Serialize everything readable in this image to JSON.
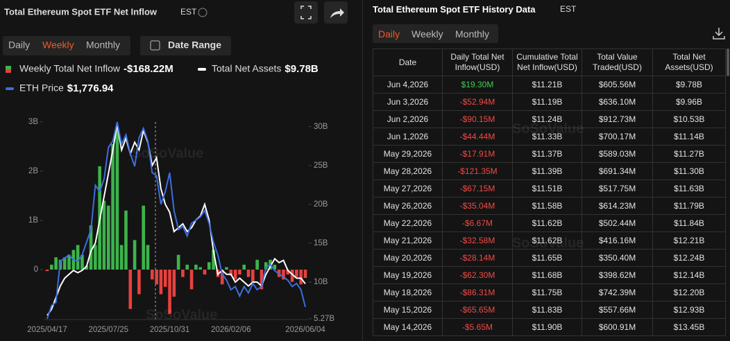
{
  "header": {
    "title": "Total Ethereum Spot ETF Net Inflow",
    "timezone": "EST",
    "tabs": [
      "Daily",
      "Weekly",
      "Monthly"
    ],
    "date_range": "Date Range"
  },
  "watermark": "SoSoValue",
  "chart_data": {
    "type": "bar",
    "categories": [
      "2025/04/17",
      null,
      null,
      null,
      null,
      null,
      null,
      null,
      null,
      null,
      null,
      null,
      null,
      null,
      "2025/07/25",
      null,
      null,
      null,
      null,
      null,
      null,
      null,
      null,
      null,
      null,
      null,
      null,
      null,
      "2025/10/31",
      null,
      null,
      null,
      null,
      null,
      null,
      null,
      null,
      null,
      null,
      null,
      null,
      null,
      "2026/02/06",
      null,
      null,
      null,
      null,
      null,
      null,
      null,
      null,
      null,
      null,
      null,
      null,
      null,
      null,
      null,
      null,
      "2026/06/04"
    ],
    "ylim": [
      -1,
      3
    ],
    "yticks": [
      {
        "value": 3,
        "label": "3B"
      },
      {
        "value": 2,
        "label": "2B"
      },
      {
        "value": 1,
        "label": "1B"
      },
      0
    ],
    "y2lim": [
      5.27,
      30.6
    ],
    "y2ticks": [
      {
        "value": 30,
        "label": "30B"
      },
      {
        "value": 25,
        "label": "25B"
      },
      {
        "value": 20,
        "label": "20B"
      },
      {
        "value": 15,
        "label": "15B"
      },
      {
        "value": 10,
        "label": "10B"
      },
      {
        "value": 5.27,
        "label": "5.27B"
      }
    ],
    "grid": false,
    "series": [
      {
        "name": "Weekly Total Net Inflow",
        "type": "bar",
        "color": "#3cb44b",
        "negative_color": "#e8413e",
        "current_label": "-$168.22M",
        "values": [
          -0.03,
          0.1,
          0.25,
          0.2,
          0.25,
          0.3,
          0.4,
          0.5,
          0.3,
          0.08,
          0.9,
          0.5,
          2.1,
          1.4,
          1.3,
          2.55,
          2.85,
          0.5,
          1.2,
          -0.8,
          0.6,
          -0.5,
          1.3,
          0.5,
          -0.2,
          -0.3,
          -0.5,
          -0.35,
          -0.9,
          -0.55,
          0.3,
          -0.15,
          0.1,
          -0.4,
          0.1,
          0.05,
          -0.1,
          0.15,
          0.4,
          -0.15,
          -0.3,
          0.05,
          -0.12,
          -0.2,
          -0.1,
          0.1,
          -0.15,
          -0.25,
          0.2,
          -0.4,
          0.15,
          0.2,
          0.1,
          -0.15,
          -0.2,
          -0.1,
          -0.25,
          -0.15,
          -0.3,
          -0.16822
        ]
      },
      {
        "name": "Total Net Assets",
        "type": "line",
        "axis": "y2",
        "color": "#ffffff",
        "current_label": "$9.78B",
        "values": [
          5.7,
          6.5,
          8,
          9.5,
          10.5,
          11,
          11.5,
          11.2,
          11.5,
          12,
          14,
          15,
          18,
          21,
          24,
          27,
          30.3,
          27,
          28.5,
          26.5,
          28,
          27,
          29.5,
          28,
          25,
          26,
          22,
          20,
          19,
          16.5,
          17,
          17.5,
          16.5,
          17,
          18,
          18.5,
          20,
          18,
          14,
          11,
          11.5,
          11,
          11,
          10,
          10.5,
          10,
          9.5,
          10,
          10,
          9.5,
          11,
          12,
          13,
          12.5,
          12.8,
          11.5,
          11,
          10.5,
          10.5,
          9.78
        ]
      },
      {
        "name": "ETH Price",
        "type": "line",
        "axis": "own",
        "color": "#3d6ee0",
        "current_label": "$1,776.94",
        "values": [
          1590,
          1800,
          1850,
          2500,
          2550,
          2600,
          2520,
          2500,
          2600,
          2800,
          3000,
          3700,
          3600,
          3800,
          4300,
          4400,
          4700,
          4350,
          4500,
          4200,
          4000,
          4450,
          4600,
          4400,
          3900,
          3850,
          3400,
          3600,
          3900,
          3300,
          3000,
          3050,
          2900,
          3100,
          3150,
          3200,
          3300,
          3100,
          2800,
          2600,
          2300,
          2200,
          2050,
          2100,
          1950,
          2100,
          2000,
          2150,
          2050,
          2100,
          2400,
          2450,
          2350,
          2300,
          2250,
          2200,
          2100,
          2150,
          2050,
          1776.94
        ]
      }
    ]
  },
  "table": {
    "title": "Total Ethereum Spot ETF History Data",
    "timezone": "EST",
    "tabs": [
      "Daily",
      "Weekly",
      "Monthly"
    ],
    "headers": [
      "Date",
      "Daily Total Net Inflow(USD)",
      "Cumulative Total Net Inflow(USD)",
      "Total Value Traded(USD)",
      "Total Net Assets(USD)"
    ],
    "rows": [
      [
        "Jun 4,2026",
        "$19.30M",
        "$11.21B",
        "$605.56M",
        "$9.78B"
      ],
      [
        "Jun 3,2026",
        "-$52.94M",
        "$11.19B",
        "$636.10M",
        "$9.96B"
      ],
      [
        "Jun 2,2026",
        "-$90.15M",
        "$11.24B",
        "$912.73M",
        "$10.53B"
      ],
      [
        "Jun 1,2026",
        "-$44.44M",
        "$11.33B",
        "$700.17M",
        "$11.14B"
      ],
      [
        "May 29,2026",
        "-$17.91M",
        "$11.37B",
        "$589.03M",
        "$11.27B"
      ],
      [
        "May 28,2026",
        "-$121.35M",
        "$11.39B",
        "$691.34M",
        "$11.30B"
      ],
      [
        "May 27,2026",
        "-$67.15M",
        "$11.51B",
        "$517.75M",
        "$11.63B"
      ],
      [
        "May 26,2026",
        "-$35.04M",
        "$11.58B",
        "$614.23M",
        "$11.79B"
      ],
      [
        "May 22,2026",
        "-$6.67M",
        "$11.62B",
        "$502.44M",
        "$11.84B"
      ],
      [
        "May 21,2026",
        "-$32.58M",
        "$11.62B",
        "$416.16M",
        "$12.21B"
      ],
      [
        "May 20,2026",
        "-$28.14M",
        "$11.65B",
        "$350.40M",
        "$12.24B"
      ],
      [
        "May 19,2026",
        "-$62.30M",
        "$11.68B",
        "$398.62M",
        "$12.14B"
      ],
      [
        "May 18,2026",
        "-$86.31M",
        "$11.75B",
        "$742.39M",
        "$12.20B"
      ],
      [
        "May 15,2026",
        "-$65.65M",
        "$11.83B",
        "$557.66M",
        "$12.93B"
      ],
      [
        "May 14,2026",
        "-$5.65M",
        "$11.90B",
        "$600.91M",
        "$13.45B"
      ]
    ]
  }
}
